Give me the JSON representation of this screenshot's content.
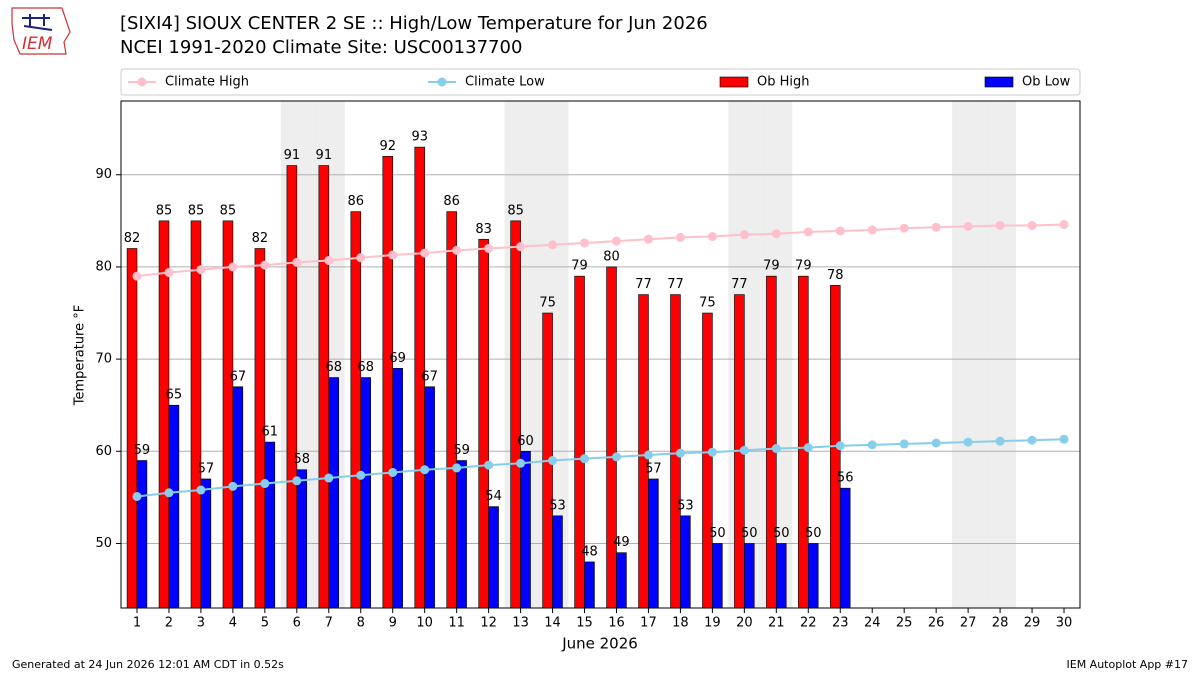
{
  "chart_data": {
    "type": "bar",
    "title": "[SIXI4] SIOUX CENTER 2 SE :: High/Low Temperature for Jun 2026",
    "subtitle": "NCEI 1991-2020 Climate Site: USC00137700",
    "xlabel": "June 2026",
    "ylabel": "Temperature °F",
    "logo_text": "IEM",
    "footer_left": "Generated at 24 Jun 2026 12:01 AM CDT in 0.52s",
    "footer_right": "IEM Autoplot App #17",
    "x": [
      1,
      2,
      3,
      4,
      5,
      6,
      7,
      8,
      9,
      10,
      11,
      12,
      13,
      14,
      15,
      16,
      17,
      18,
      19,
      20,
      21,
      22,
      23,
      24,
      25,
      26,
      27,
      28,
      29,
      30
    ],
    "xlim": [
      0.5,
      30.5
    ],
    "xticks": [
      1,
      2,
      3,
      4,
      5,
      6,
      7,
      8,
      9,
      10,
      11,
      12,
      13,
      14,
      15,
      16,
      17,
      18,
      19,
      20,
      21,
      22,
      23,
      24,
      25,
      26,
      27,
      28,
      29,
      30
    ],
    "ylim": [
      43,
      98
    ],
    "yticks": [
      50,
      60,
      70,
      80,
      90
    ],
    "grid": true,
    "shaded_days": [
      6,
      7,
      13,
      14,
      20,
      21,
      27,
      28
    ],
    "shade_color": "#eeeeee",
    "series": [
      {
        "name": "Climate High",
        "type": "line",
        "color": "#ffc0cb",
        "values": [
          79.0,
          79.4,
          79.7,
          80.0,
          80.2,
          80.5,
          80.7,
          81.0,
          81.3,
          81.5,
          81.8,
          82.0,
          82.2,
          82.4,
          82.6,
          82.8,
          83.0,
          83.2,
          83.3,
          83.5,
          83.6,
          83.8,
          83.9,
          84.0,
          84.2,
          84.3,
          84.4,
          84.5,
          84.5,
          84.6
        ]
      },
      {
        "name": "Climate Low",
        "type": "line",
        "color": "#87ceeb",
        "values": [
          55.1,
          55.5,
          55.8,
          56.2,
          56.5,
          56.8,
          57.1,
          57.4,
          57.7,
          58.0,
          58.2,
          58.5,
          58.7,
          59.0,
          59.2,
          59.4,
          59.6,
          59.8,
          59.9,
          60.1,
          60.3,
          60.4,
          60.6,
          60.7,
          60.8,
          60.9,
          61.0,
          61.1,
          61.2,
          61.3
        ]
      },
      {
        "name": "Ob High",
        "type": "bar",
        "color": "#ff0000",
        "values": [
          82,
          85,
          85,
          85,
          82,
          91,
          91,
          86,
          92,
          93,
          86,
          83,
          85,
          75,
          79,
          80,
          77,
          77,
          75,
          77,
          79,
          79,
          78,
          null,
          null,
          null,
          null,
          null,
          null,
          null
        ]
      },
      {
        "name": "Ob Low",
        "type": "bar",
        "color": "#0000ff",
        "values": [
          59,
          65,
          57,
          67,
          61,
          58,
          68,
          68,
          69,
          67,
          59,
          54,
          60,
          53,
          48,
          49,
          57,
          53,
          50,
          50,
          50,
          50,
          56,
          null,
          null,
          null,
          null,
          null,
          null,
          null
        ]
      }
    ]
  }
}
